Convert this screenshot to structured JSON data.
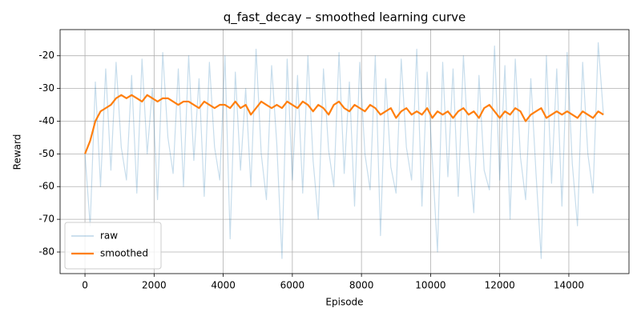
{
  "chart_data": {
    "type": "line",
    "title": "q_fast_decay – smoothed learning curve",
    "x_label": "Episode",
    "y_label": "Reward",
    "x": [
      0,
      150,
      300,
      450,
      600,
      750,
      900,
      1050,
      1200,
      1350,
      1500,
      1650,
      1800,
      1950,
      2100,
      2250,
      2400,
      2550,
      2700,
      2850,
      3000,
      3150,
      3300,
      3450,
      3600,
      3750,
      3900,
      4050,
      4200,
      4350,
      4500,
      4650,
      4800,
      4950,
      5100,
      5250,
      5400,
      5550,
      5700,
      5850,
      6000,
      6150,
      6300,
      6450,
      6600,
      6750,
      6900,
      7050,
      7200,
      7350,
      7500,
      7650,
      7800,
      7950,
      8100,
      8250,
      8400,
      8550,
      8700,
      8850,
      9000,
      9150,
      9300,
      9450,
      9600,
      9750,
      9900,
      10050,
      10200,
      10350,
      10500,
      10650,
      10800,
      10950,
      11100,
      11250,
      11400,
      11550,
      11700,
      11850,
      12000,
      12150,
      12300,
      12450,
      12600,
      12750,
      12900,
      13050,
      13200,
      13350,
      13500,
      13650,
      13800,
      13950,
      14100,
      14250,
      14400,
      14550,
      14700,
      14850,
      15000
    ],
    "series": [
      {
        "name": "raw",
        "color": "#1f77b4",
        "values": [
          -50,
          -72,
          -28,
          -60,
          -24,
          -55,
          -22,
          -48,
          -58,
          -26,
          -62,
          -21,
          -50,
          -30,
          -64,
          -19,
          -45,
          -56,
          -24,
          -60,
          -20,
          -52,
          -27,
          -63,
          -22,
          -48,
          -58,
          -20,
          -76,
          -25,
          -55,
          -30,
          -60,
          -18,
          -50,
          -64,
          -23,
          -47,
          -82,
          -21,
          -58,
          -26,
          -62,
          -20,
          -52,
          -70,
          -24,
          -49,
          -60,
          -19,
          -56,
          -28,
          -66,
          -22,
          -50,
          -61,
          -20,
          -75,
          -27,
          -54,
          -62,
          -21,
          -48,
          -58,
          -18,
          -66,
          -25,
          -52,
          -80,
          -22,
          -57,
          -24,
          -63,
          -20,
          -49,
          -68,
          -26,
          -55,
          -61,
          -17,
          -58,
          -23,
          -70,
          -21,
          -51,
          -64,
          -27,
          -56,
          -82,
          -20,
          -59,
          -24,
          -66,
          -19,
          -53,
          -72,
          -22,
          -50,
          -62,
          -16,
          -38
        ]
      },
      {
        "name": "smoothed",
        "color": "#ff7f0e",
        "values": [
          -50,
          -46,
          -40,
          -37,
          -36,
          -35,
          -33,
          -32,
          -33,
          -32,
          -33,
          -34,
          -32,
          -33,
          -34,
          -33,
          -33,
          -34,
          -35,
          -34,
          -34,
          -35,
          -36,
          -34,
          -35,
          -36,
          -35,
          -35,
          -36,
          -34,
          -36,
          -35,
          -38,
          -36,
          -34,
          -35,
          -36,
          -35,
          -36,
          -34,
          -35,
          -36,
          -34,
          -35,
          -37,
          -35,
          -36,
          -38,
          -35,
          -34,
          -36,
          -37,
          -35,
          -36,
          -37,
          -35,
          -36,
          -38,
          -37,
          -36,
          -39,
          -37,
          -36,
          -38,
          -37,
          -38,
          -36,
          -39,
          -37,
          -38,
          -37,
          -39,
          -37,
          -36,
          -38,
          -37,
          -39,
          -36,
          -35,
          -37,
          -39,
          -37,
          -38,
          -36,
          -37,
          -40,
          -38,
          -37,
          -36,
          -39,
          -38,
          -37,
          -38,
          -37,
          -38,
          -39,
          -37,
          -38,
          -39,
          -37,
          -38
        ]
      }
    ],
    "xlim": [
      -720,
      15740
    ],
    "xticks": [
      0,
      2000,
      4000,
      6000,
      8000,
      10000,
      12000,
      14000
    ],
    "ylim": [
      -86.6,
      -12
    ],
    "yticks": [
      -80,
      -70,
      -60,
      -50,
      -40,
      -30,
      -20
    ],
    "grid": true,
    "legend": "lower left"
  }
}
